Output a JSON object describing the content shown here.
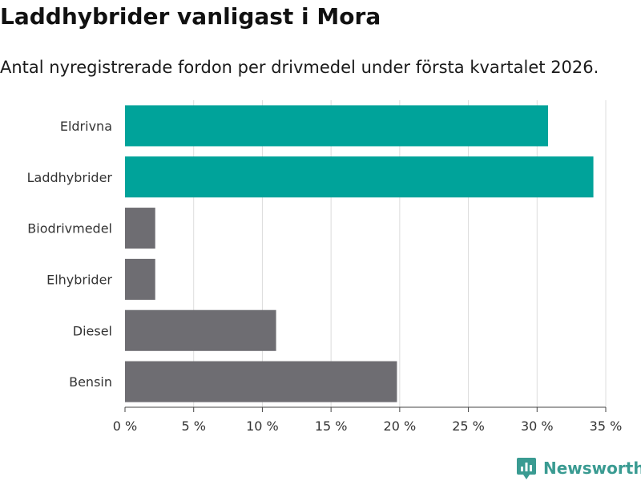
{
  "header": {
    "title": "Laddhybrider vanligast i Mora",
    "subtitle": "Antal nyregistrerade fordon per drivmedel under första kvartalet 2026."
  },
  "chart_data": {
    "type": "bar",
    "orientation": "horizontal",
    "categories": [
      "Eldrivna",
      "Laddhybrider",
      "Biodrivmedel",
      "Elhybrider",
      "Diesel",
      "Bensin"
    ],
    "values": [
      30.8,
      34.1,
      2.2,
      2.2,
      11.0,
      19.8
    ],
    "colors": [
      "#00a39a",
      "#00a39a",
      "#6e6d72",
      "#6e6d72",
      "#6e6d72",
      "#6e6d72"
    ],
    "xlim": [
      0,
      35
    ],
    "xticks": [
      0,
      5,
      10,
      15,
      20,
      25,
      30,
      35
    ],
    "xtick_labels": [
      "0 %",
      "5 %",
      "10 %",
      "15 %",
      "20 %",
      "25 %",
      "30 %",
      "35 %"
    ],
    "grid": "vertical"
  },
  "brand": {
    "name": "Newsworthy",
    "icon": "bar-chart-pin-icon",
    "color": "#3a9b92"
  }
}
